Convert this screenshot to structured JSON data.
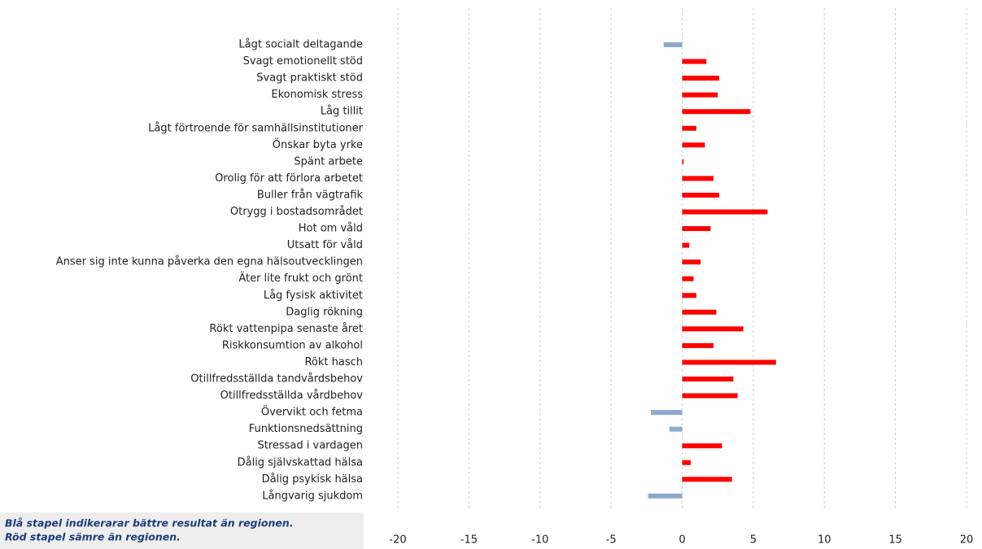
{
  "chart_data": {
    "type": "barh",
    "categories": [
      "Lågt socialt deltagande",
      "Svagt emotionellt stöd",
      "Svagt praktiskt stöd",
      "Ekonomisk stress",
      "Låg tillit",
      "Lågt förtroende för samhällsinstitutioner",
      "Önskar byta yrke",
      "Spänt arbete",
      "Orolig för att förlora arbetet",
      "Buller från vägtrafik",
      "Otrygg i bostadsområdet",
      "Hot om våld",
      "Utsatt för våld",
      "Anser sig inte kunna påverka den egna hälsoutvecklingen",
      "Äter lite frukt och grönt",
      "Låg fysisk aktivitet",
      "Daglig rökning",
      "Rökt vattenpipa senaste året",
      "Riskkonsumtion av alkohol",
      "Rökt hasch",
      "Otillfredsställda tandvårdsbehov",
      "Otillfredsställda vårdbehov",
      "Övervikt och fetma",
      "Funktionsnedsättning",
      "Stressad i vardagen",
      "Dålig självskattad hälsa",
      "Dålig psykisk hälsa",
      "Långvarig sjukdom"
    ],
    "values": [
      -1.3,
      1.7,
      2.6,
      2.5,
      4.8,
      1.0,
      1.6,
      0.1,
      2.2,
      2.6,
      6.0,
      2.0,
      0.5,
      1.3,
      0.8,
      1.0,
      2.4,
      4.3,
      2.2,
      6.6,
      3.6,
      3.9,
      -2.2,
      -0.9,
      2.8,
      0.6,
      3.5,
      -2.4
    ],
    "positive_color": "#ff0000",
    "negative_color": "#8da9cc",
    "xlim": [
      -20,
      20
    ],
    "xticks": [
      -20,
      -15,
      -10,
      -5,
      0,
      5,
      10,
      15,
      20
    ],
    "grid": true,
    "note": [
      "Blå stapel indikerarar bättre resultat än regionen.",
      "Röd stapel sämre än regionen."
    ]
  }
}
